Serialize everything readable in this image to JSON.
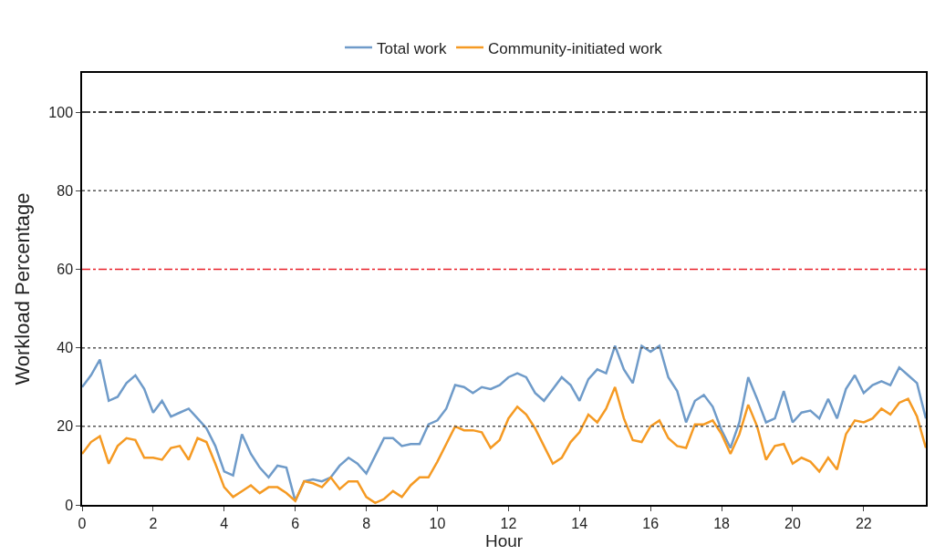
{
  "chart_data": {
    "type": "line",
    "xlabel": "Hour",
    "ylabel": "Workload Percentage",
    "x": [
      0,
      0.25,
      0.5,
      0.75,
      1,
      1.25,
      1.5,
      1.75,
      2,
      2.25,
      2.5,
      2.75,
      3,
      3.25,
      3.5,
      3.75,
      4,
      4.25,
      4.5,
      4.75,
      5,
      5.25,
      5.5,
      5.75,
      6,
      6.25,
      6.5,
      6.75,
      7,
      7.25,
      7.5,
      7.75,
      8,
      8.25,
      8.5,
      8.75,
      9,
      9.25,
      9.5,
      9.75,
      10,
      10.25,
      10.5,
      10.75,
      11,
      11.25,
      11.5,
      11.75,
      12,
      12.25,
      12.5,
      12.75,
      13,
      13.25,
      13.5,
      13.75,
      14,
      14.25,
      14.5,
      14.75,
      15,
      15.25,
      15.5,
      15.75,
      16,
      16.25,
      16.5,
      16.75,
      17,
      17.25,
      17.5,
      17.75,
      18,
      18.25,
      18.5,
      18.75,
      19,
      19.25,
      19.5,
      19.75,
      20,
      20.25,
      20.5,
      20.75,
      21,
      21.25,
      21.5,
      21.75,
      22,
      22.25,
      22.5,
      22.75,
      23,
      23.25,
      23.5,
      23.75
    ],
    "series": [
      {
        "name": "Total work",
        "color": "#6f9bc9",
        "values": [
          30,
          33,
          37,
          26.5,
          27.5,
          31,
          33,
          29.5,
          23.5,
          26.5,
          22.5,
          23.5,
          24.5,
          22,
          19.5,
          15,
          8.5,
          7.5,
          18,
          13,
          9.5,
          7,
          10,
          9.5,
          1,
          6,
          6.5,
          6,
          7,
          10,
          12,
          10.5,
          8,
          12.5,
          17,
          17,
          15,
          15.5,
          15.5,
          20.5,
          21.5,
          24.5,
          30.5,
          30,
          28.5,
          30,
          29.5,
          30.5,
          32.5,
          33.5,
          32.5,
          28.5,
          26.5,
          29.5,
          32.5,
          30.5,
          26.5,
          32,
          34.5,
          33.5,
          40.5,
          34.5,
          31,
          40.5,
          39,
          40.5,
          32.5,
          29,
          21,
          26.5,
          28,
          25,
          19,
          14.5,
          21,
          32.5,
          27,
          21,
          22,
          29,
          21,
          23.5,
          24,
          22,
          27,
          22,
          29.5,
          33,
          28.5,
          30.5,
          31.5,
          30.5,
          35,
          33,
          31,
          22
        ]
      },
      {
        "name": "Community-initiated work",
        "color": "#f59a23",
        "values": [
          13,
          16,
          17.5,
          10.5,
          15,
          17,
          16.5,
          12,
          12,
          11.5,
          14.5,
          15,
          11.5,
          17,
          16,
          10.5,
          4.5,
          2,
          3.5,
          5,
          3,
          4.5,
          4.5,
          3,
          1,
          6,
          5.5,
          4.5,
          7,
          4,
          6,
          6,
          2,
          0.5,
          1.5,
          3.5,
          2,
          5,
          7,
          7,
          11,
          15.5,
          20,
          19,
          19,
          18.5,
          14.5,
          16.5,
          22,
          25,
          23,
          19.5,
          15,
          10.5,
          12,
          16,
          18.5,
          23,
          21,
          24.5,
          30,
          22,
          16.5,
          16,
          20,
          21.5,
          17,
          15,
          14.5,
          20.5,
          20.5,
          21.5,
          18,
          13,
          18,
          25.5,
          20,
          11.5,
          15,
          15.5,
          10.5,
          12,
          11,
          8.5,
          12,
          9,
          18,
          21.5,
          21,
          22,
          24.5,
          23,
          26,
          27,
          22.5,
          14.5
        ]
      }
    ],
    "xlim": [
      0,
      23.75
    ],
    "xticks": [
      0,
      2,
      4,
      6,
      8,
      10,
      12,
      14,
      16,
      18,
      20,
      22
    ],
    "ylim": [
      0,
      110
    ],
    "yticks": [
      0,
      20,
      40,
      60,
      80,
      100
    ],
    "ref_lines": [
      {
        "axis": "y",
        "value": 100,
        "color": "#000000",
        "line_style": "dashdot"
      },
      {
        "axis": "y",
        "value": 80,
        "color": "#555555",
        "line_style": "dotted"
      },
      {
        "axis": "y",
        "value": 60,
        "color": "#e8202a",
        "line_style": "dashdot"
      },
      {
        "axis": "y",
        "value": 40,
        "color": "#555555",
        "line_style": "dotted"
      },
      {
        "axis": "y",
        "value": 20,
        "color": "#555555",
        "line_style": "dotted"
      }
    ],
    "legend": "top",
    "marker": "none",
    "line_style": "solid"
  }
}
